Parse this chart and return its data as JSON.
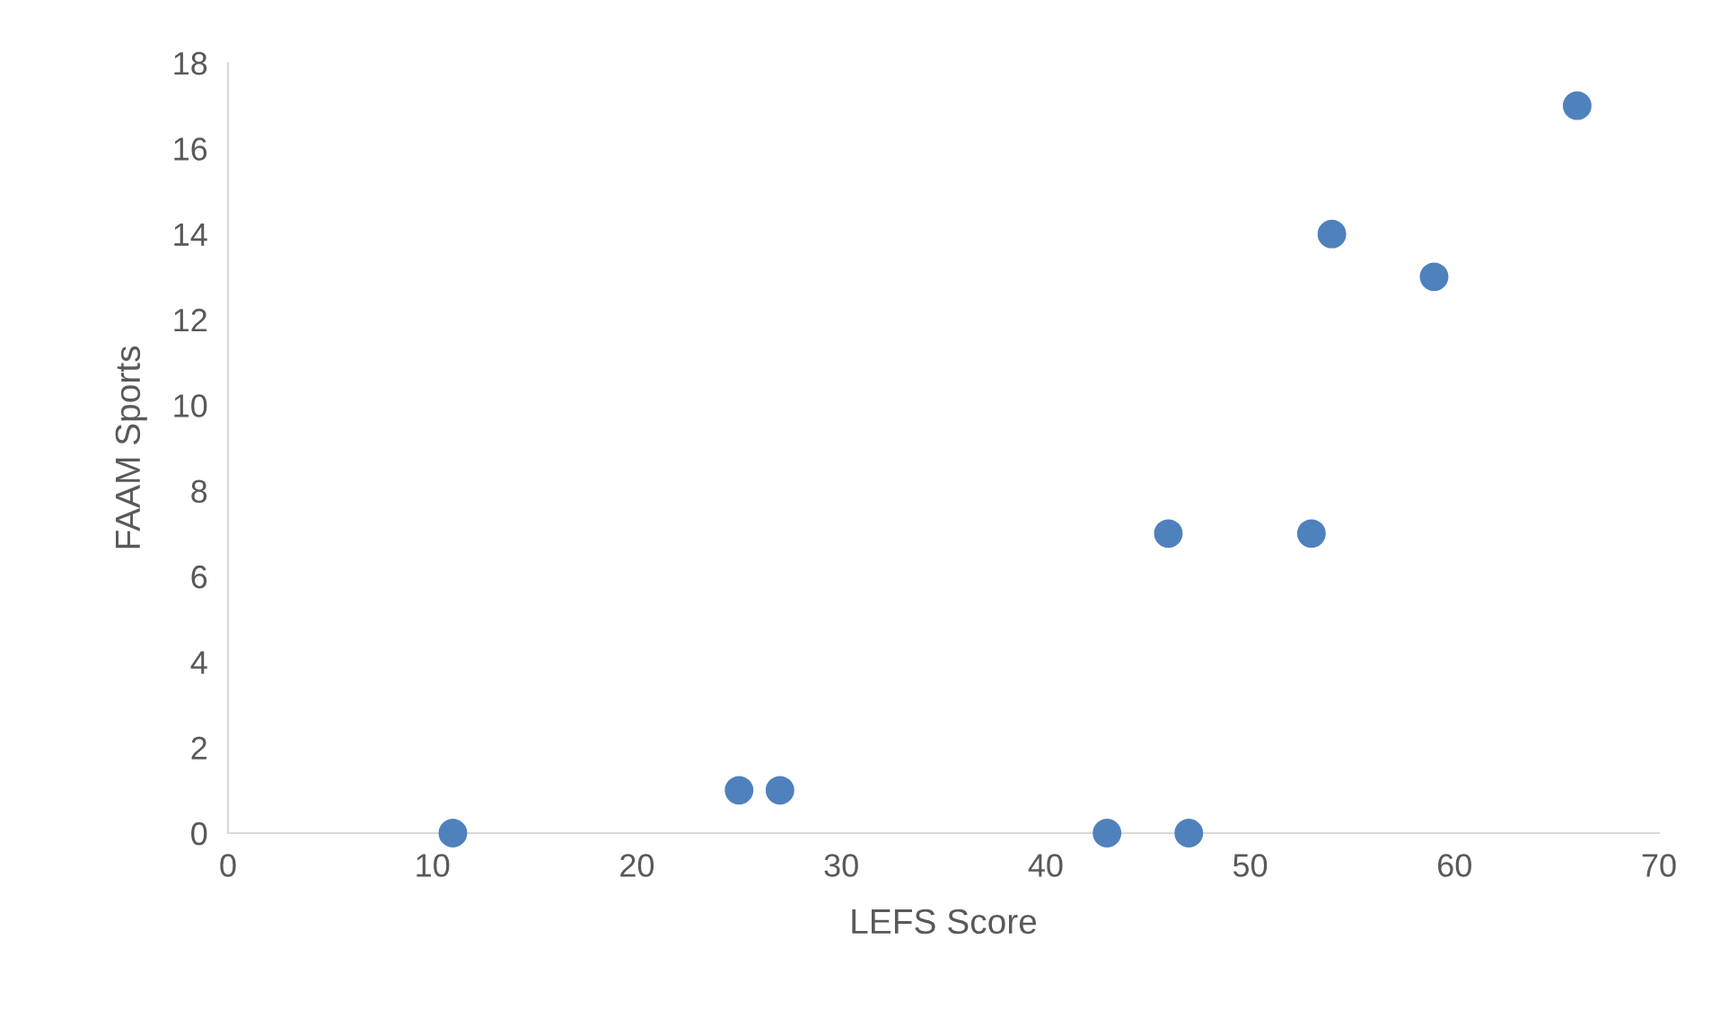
{
  "chart_data": {
    "type": "scatter",
    "xlabel": "LEFS Score",
    "ylabel": "FAAM Sports",
    "series": [
      {
        "color": "#4f81bd",
        "x": [
          11,
          25,
          27,
          43,
          47,
          46,
          53,
          54,
          59,
          66
        ],
        "values": [
          0,
          1,
          1,
          0,
          0,
          7,
          7,
          14,
          13,
          17
        ]
      }
    ],
    "xlim": [
      0,
      70
    ],
    "xticks": [
      0,
      10,
      20,
      30,
      40,
      50,
      60,
      70
    ],
    "ylim": [
      0,
      18
    ],
    "yticks": [
      0,
      2,
      4,
      6,
      8,
      10,
      12,
      14,
      16,
      18
    ],
    "marker": "circle",
    "grid": false,
    "legend": false
  }
}
